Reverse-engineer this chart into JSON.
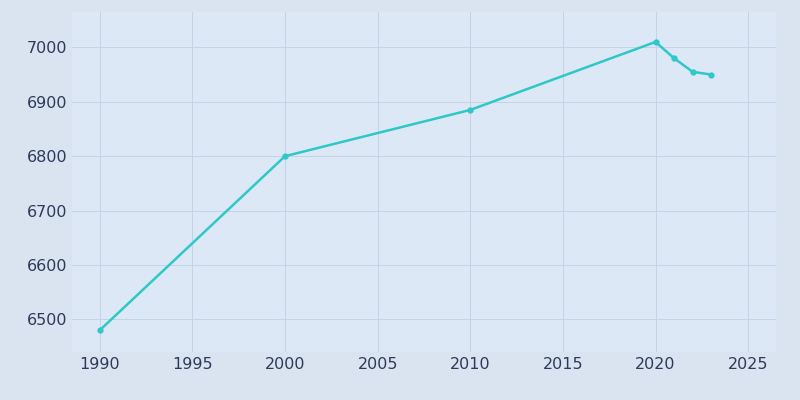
{
  "years": [
    1990,
    2000,
    2010,
    2020,
    2021,
    2022,
    2023
  ],
  "population": [
    6480,
    6800,
    6885,
    7010,
    6980,
    6955,
    6950
  ],
  "line_color": "#2ec8c8",
  "marker_style": "o",
  "marker_size": 3.5,
  "line_width": 1.8,
  "fig_bg_color": "#d9e4f0",
  "ax_bg_color": "#dce8f5",
  "xlim": [
    1988.5,
    2026.5
  ],
  "ylim": [
    6440,
    7065
  ],
  "xticks": [
    1990,
    1995,
    2000,
    2005,
    2010,
    2015,
    2020,
    2025
  ],
  "yticks": [
    6500,
    6600,
    6700,
    6800,
    6900,
    7000
  ],
  "grid_color": "#c0d0e0",
  "grid_alpha": 1.0,
  "grid_linewidth": 0.6,
  "tick_label_color": "#2e3a5c",
  "tick_fontsize": 11.5
}
